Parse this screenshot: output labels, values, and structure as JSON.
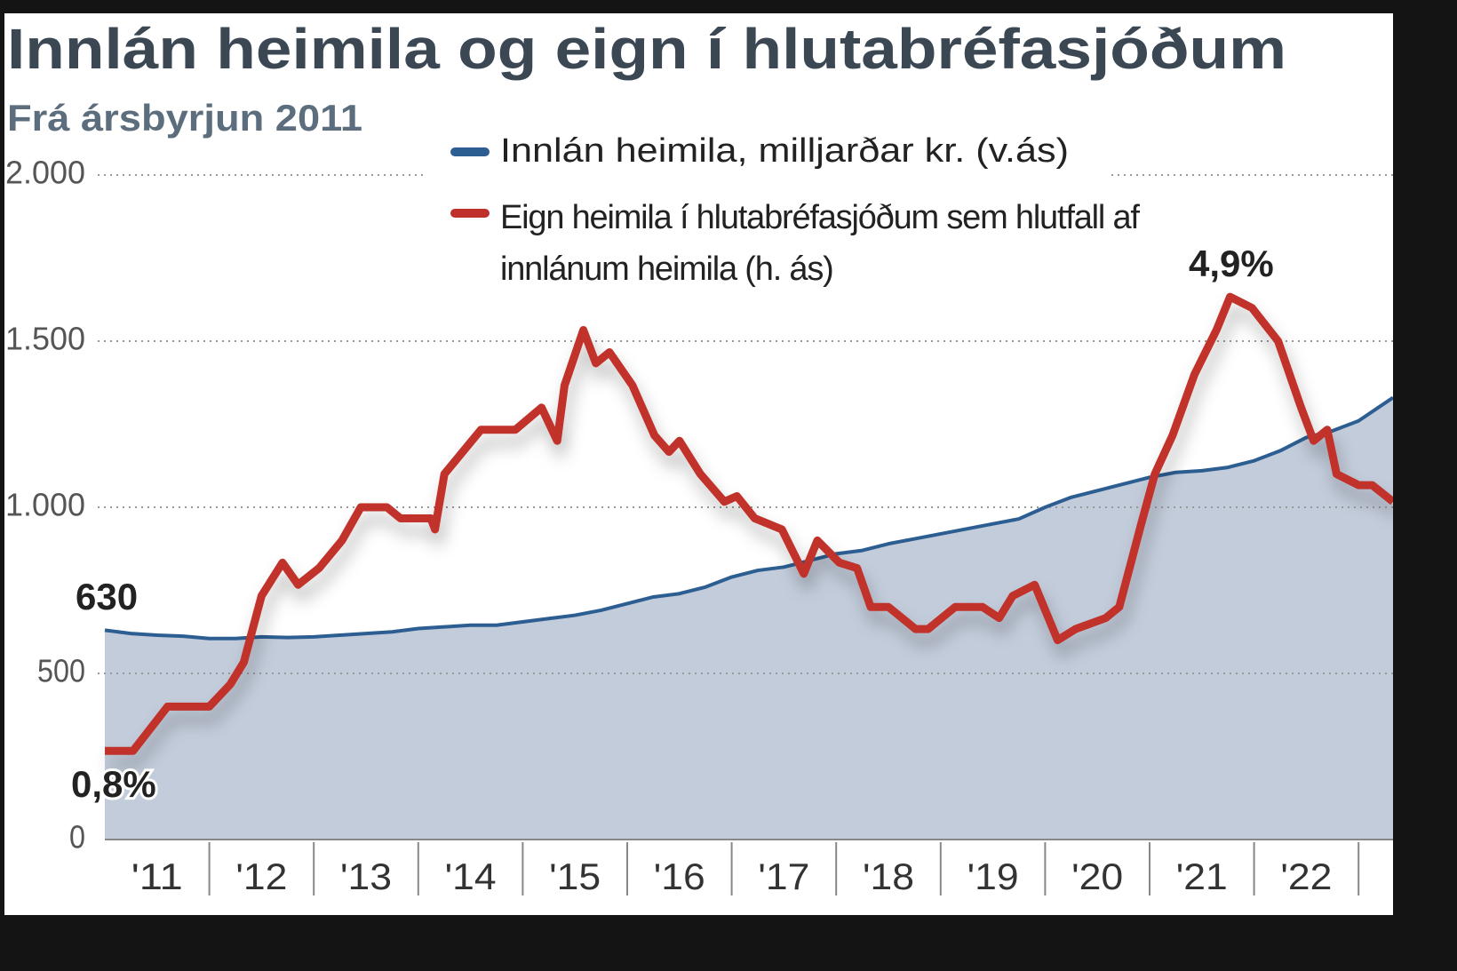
{
  "chart_data": {
    "type": "line",
    "title": "Innlán heimila og eign í hlutabréfasjóðum",
    "subtitle": "Frá ársbyrjun 2011",
    "ylim": [
      0,
      2000
    ],
    "yticks": [
      {
        "value": 0,
        "label": "0"
      },
      {
        "value": 500,
        "label": "500"
      },
      {
        "value": 1000,
        "label": "1.000"
      },
      {
        "value": 1500,
        "label": "1.500"
      },
      {
        "value": 2000,
        "label": "2.000"
      }
    ],
    "y2lim": [
      0,
      6
    ],
    "xlim": [
      2011,
      2023.33
    ],
    "xticks": [
      {
        "value": 2011.5,
        "label": "'11"
      },
      {
        "value": 2012.5,
        "label": "'12"
      },
      {
        "value": 2013.5,
        "label": "'13"
      },
      {
        "value": 2014.5,
        "label": "'14"
      },
      {
        "value": 2015.5,
        "label": "'15"
      },
      {
        "value": 2016.5,
        "label": "'16"
      },
      {
        "value": 2017.5,
        "label": "'17"
      },
      {
        "value": 2018.5,
        "label": "'18"
      },
      {
        "value": 2019.5,
        "label": "'19"
      },
      {
        "value": 2020.5,
        "label": "'20"
      },
      {
        "value": 2021.5,
        "label": "'21"
      },
      {
        "value": 2022.5,
        "label": "'22"
      }
    ],
    "grid": true,
    "series": [
      {
        "name": "Innlán heimila, milljarðar kr. (v.ás)",
        "color": "#2d5e92",
        "axis": "y",
        "area_color": "#c3ccdb",
        "x": [
          2011,
          2011.25,
          2011.5,
          2011.75,
          2012,
          2012.25,
          2012.5,
          2012.75,
          2013,
          2013.25,
          2013.5,
          2013.75,
          2014,
          2014.25,
          2014.5,
          2014.75,
          2015,
          2015.25,
          2015.5,
          2015.75,
          2016,
          2016.25,
          2016.5,
          2016.75,
          2017,
          2017.25,
          2017.5,
          2017.75,
          2018,
          2018.25,
          2018.5,
          2018.75,
          2019,
          2019.25,
          2019.5,
          2019.75,
          2020,
          2020.25,
          2020.5,
          2020.75,
          2021,
          2021.25,
          2021.5,
          2021.75,
          2022,
          2022.25,
          2022.5,
          2022.75,
          2023,
          2023.33
        ],
        "values": [
          630,
          620,
          615,
          612,
          605,
          605,
          610,
          608,
          610,
          615,
          620,
          625,
          635,
          640,
          645,
          645,
          655,
          665,
          675,
          690,
          710,
          730,
          740,
          760,
          790,
          810,
          820,
          840,
          860,
          870,
          890,
          905,
          920,
          935,
          950,
          965,
          1000,
          1030,
          1050,
          1070,
          1090,
          1105,
          1110,
          1120,
          1140,
          1170,
          1210,
          1230,
          1260,
          1330
        ]
      },
      {
        "name": "Eign heimila í hlutabréfasjóðum sem hlutfall af innlánum heimila (h. ás)",
        "color": "#c0302a",
        "axis": "y2",
        "x": [
          2011,
          2011.27,
          2011.6,
          2012,
          2012.2,
          2012.33,
          2012.5,
          2012.7,
          2012.85,
          2013.05,
          2013.27,
          2013.45,
          2013.7,
          2013.83,
          2014.12,
          2014.16,
          2014.25,
          2014.6,
          2014.93,
          2015.18,
          2015.33,
          2015.4,
          2015.58,
          2015.7,
          2015.83,
          2016.05,
          2016.26,
          2016.4,
          2016.5,
          2016.7,
          2016.93,
          2017.05,
          2017.22,
          2017.48,
          2017.69,
          2017.82,
          2018.03,
          2018.2,
          2018.33,
          2018.5,
          2018.76,
          2018.88,
          2019.14,
          2019.4,
          2019.56,
          2019.69,
          2019.9,
          2020.12,
          2020.29,
          2020.58,
          2020.71,
          2020.92,
          2021.05,
          2021.22,
          2021.43,
          2021.64,
          2021.77,
          2021.98,
          2022.23,
          2022.45,
          2022.57,
          2022.7,
          2022.79,
          2023,
          2023.13,
          2023.33
        ],
        "values": [
          0.8,
          0.8,
          1.2,
          1.2,
          1.4,
          1.6,
          2.2,
          2.5,
          2.3,
          2.45,
          2.7,
          3.0,
          3.0,
          2.9,
          2.9,
          2.8,
          3.3,
          3.7,
          3.7,
          3.9,
          3.6,
          4.1,
          4.6,
          4.3,
          4.4,
          4.1,
          3.65,
          3.5,
          3.6,
          3.3,
          3.05,
          3.1,
          2.9,
          2.8,
          2.4,
          2.7,
          2.5,
          2.45,
          2.1,
          2.1,
          1.9,
          1.9,
          2.1,
          2.1,
          2.0,
          2.2,
          2.3,
          1.8,
          1.9,
          2.0,
          2.1,
          2.85,
          3.3,
          3.65,
          4.2,
          4.6,
          4.9,
          4.8,
          4.5,
          3.9,
          3.6,
          3.7,
          3.3,
          3.2,
          3.2,
          3.05
        ]
      }
    ],
    "annotations": [
      "630",
      "0,8%",
      "4,9%"
    ]
  }
}
